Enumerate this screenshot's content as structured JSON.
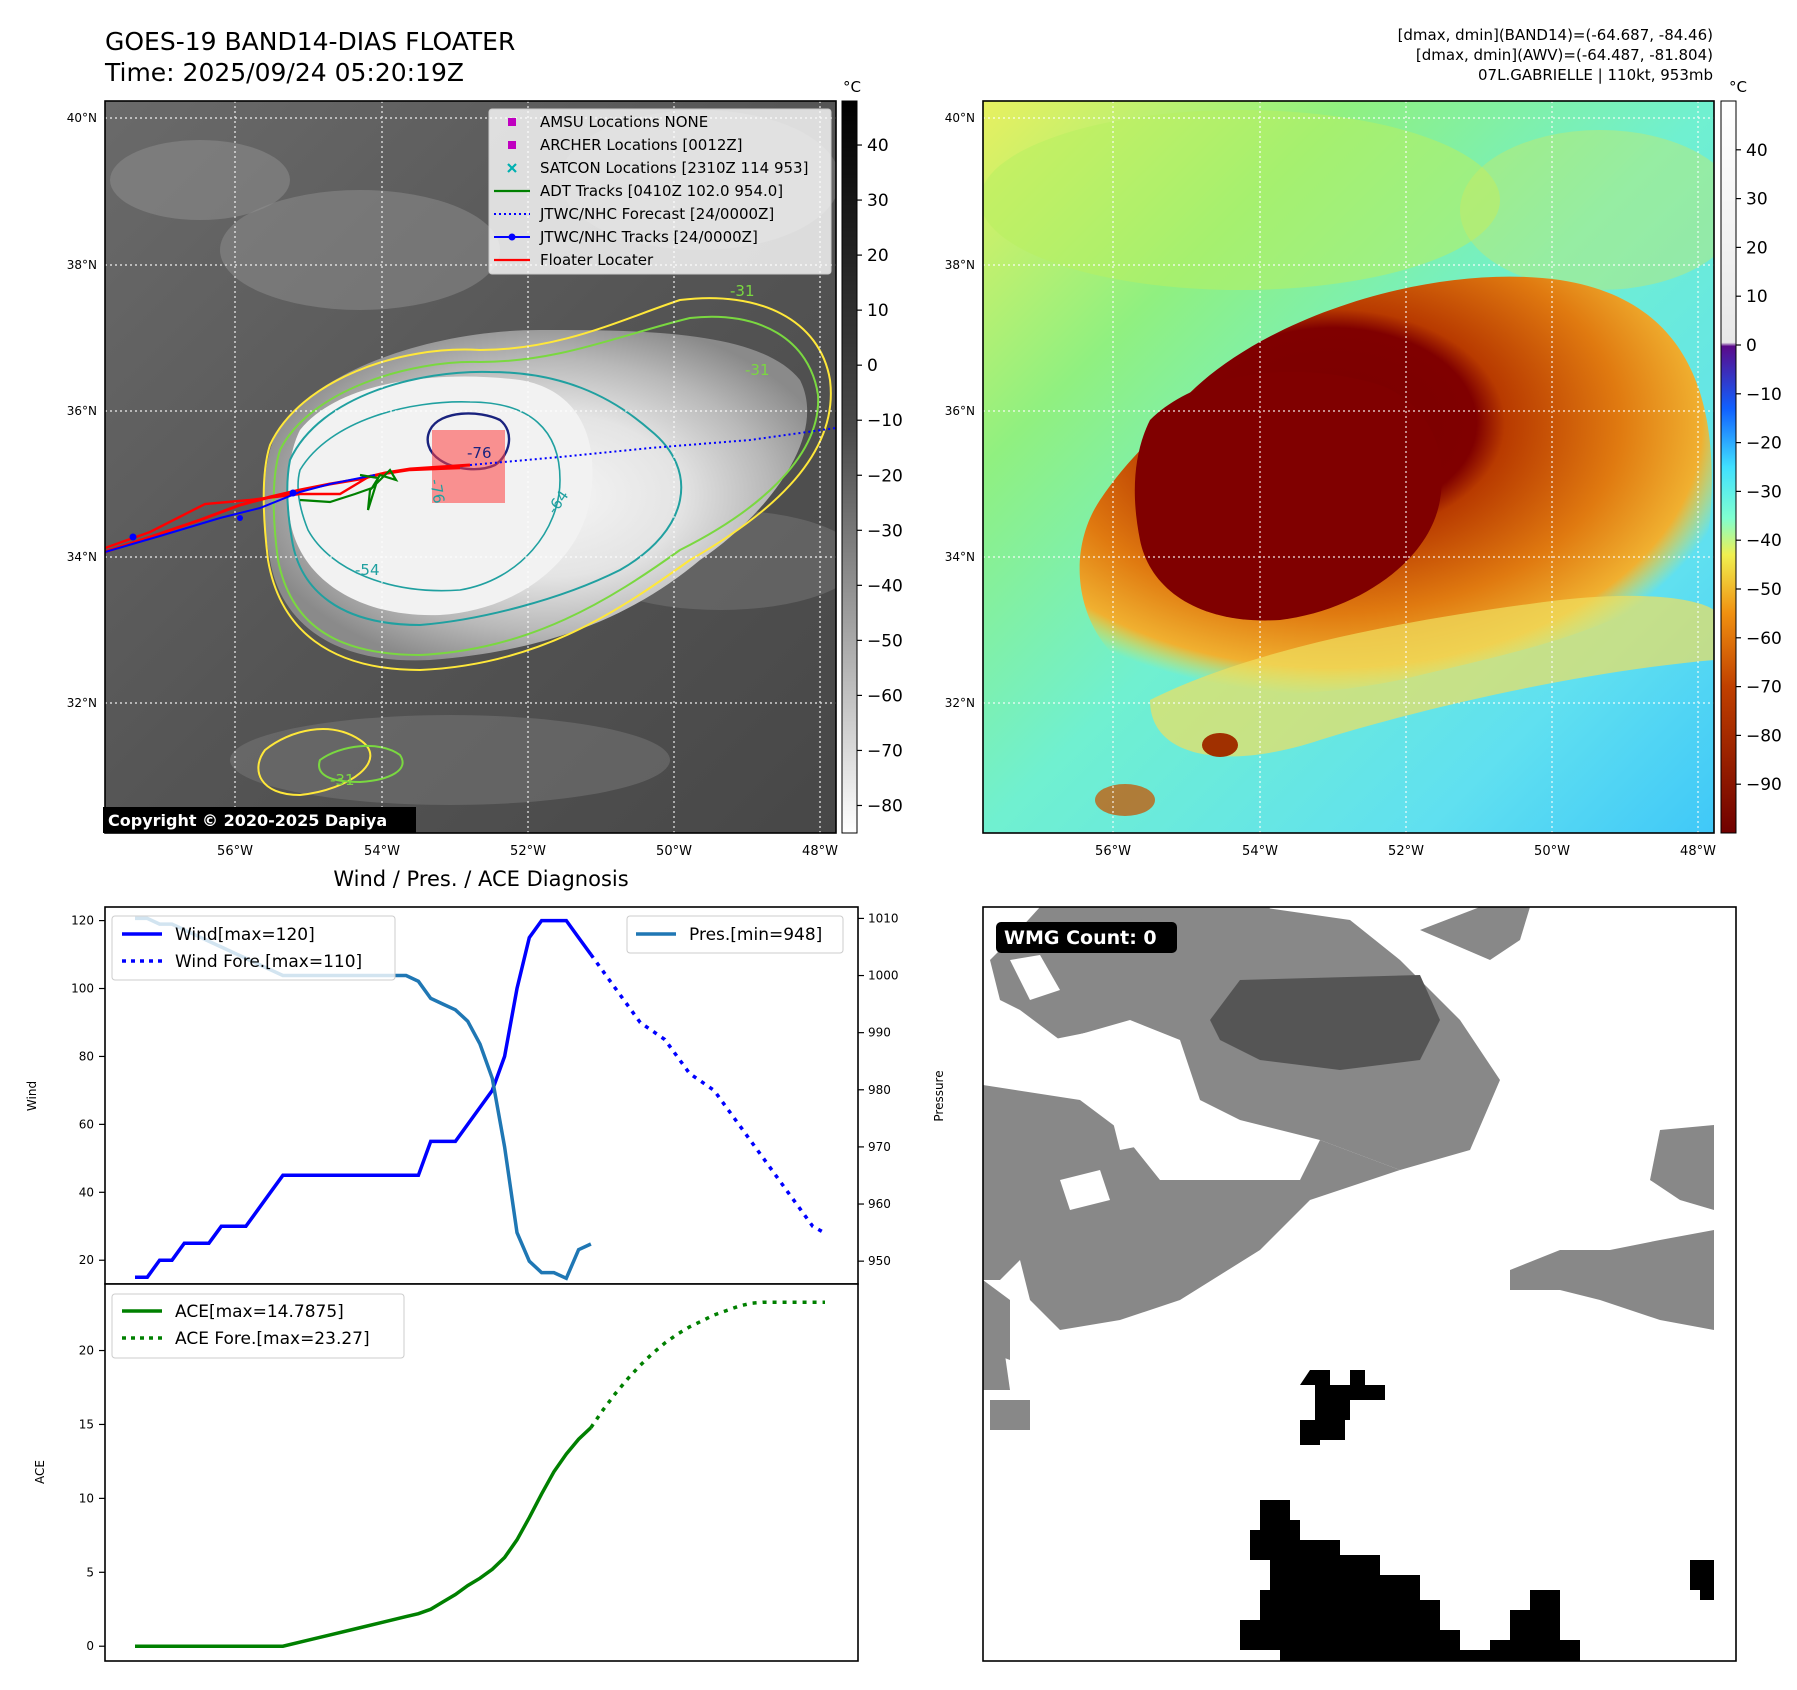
{
  "header": {
    "title": "GOES-19 BAND14-DIAS FLOATER",
    "time": "Time: 2025/09/24 05:20:19Z",
    "stats_band14": "[dmax, dmin](BAND14)=(-64.687, -84.46)",
    "stats_awv": "[dmax, dmin](AWV)=(-64.487, -81.804)",
    "storm": "07L.GABRIELLE | 110kt, 953mb"
  },
  "copyright": "Copyright © 2020-2025 Dapiya",
  "map_axes": {
    "lat_labels": [
      "40°N",
      "38°N",
      "36°N",
      "34°N",
      "32°N"
    ],
    "lon_labels": [
      "56°W",
      "54°W",
      "52°W",
      "50°W",
      "48°W"
    ]
  },
  "colorbar_ir": {
    "unit": "°C",
    "ticks": [
      "40",
      "30",
      "20",
      "10",
      "0",
      "−10",
      "−20",
      "−30",
      "−40",
      "−50",
      "−60",
      "−70",
      "−80"
    ],
    "range": [
      -85,
      48
    ]
  },
  "colorbar_awv": {
    "unit": "°C",
    "ticks": [
      "40",
      "30",
      "20",
      "10",
      "0",
      "−10",
      "−20",
      "−30",
      "−40",
      "−50",
      "−60",
      "−70",
      "−80",
      "−90"
    ],
    "range": [
      -100,
      50
    ]
  },
  "legend_ir": [
    {
      "label": "AMSU Locations NONE",
      "marker": "square",
      "color": "#c000c0"
    },
    {
      "label": "ARCHER Locations [0012Z]",
      "marker": "square",
      "color": "#c000c0"
    },
    {
      "label": "SATCON Locations [2310Z 114 953]",
      "marker": "x",
      "color": "#00b0b0"
    },
    {
      "label": "ADT Tracks [0410Z 102.0 954.0]",
      "marker": "line",
      "color": "#008000"
    },
    {
      "label": "JTWC/NHC Forecast [24/0000Z]",
      "marker": "dotted",
      "color": "#0000ff"
    },
    {
      "label": "JTWC/NHC Tracks [24/0000Z]",
      "marker": "line-dot",
      "color": "#0000ff"
    },
    {
      "label": "Floater Locater",
      "marker": "line",
      "color": "#ff0000"
    }
  ],
  "contour_labels": [
    "-31",
    "-31",
    "-54",
    "-64",
    "-76",
    "-76",
    "-31"
  ],
  "diagnosis": {
    "title": "Wind / Pres. / ACE Diagnosis",
    "wind_axis_label": "Wind",
    "pressure_axis_label": "Pressure",
    "ace_axis_label": "ACE",
    "legend_wind": "Wind[max=120]",
    "legend_wind_fore": "Wind Fore.[max=110]",
    "legend_pres": "Pres.[min=948]",
    "legend_ace": "ACE[max=14.7875]",
    "legend_ace_fore": "ACE Fore.[max=23.27]",
    "wind_ticks": [
      "120",
      "100",
      "80",
      "60",
      "40",
      "20"
    ],
    "pres_ticks": [
      "1010",
      "1000",
      "990",
      "980",
      "970",
      "960",
      "950"
    ],
    "ace_ticks": [
      "20",
      "15",
      "10",
      "5",
      "0"
    ]
  },
  "wmg": {
    "label": "WMG Count: 0"
  },
  "chart_data": [
    {
      "type": "line",
      "title": "Wind / Pres. / ACE Diagnosis",
      "ylabel": "Wind",
      "ylim": [
        13,
        124
      ],
      "series": [
        {
          "name": "Wind[max=120]",
          "color": "#0000ff",
          "style": "solid",
          "x": [
            0,
            1,
            2,
            3,
            4,
            5,
            6,
            7,
            8,
            9,
            10,
            11,
            12,
            13,
            14,
            15,
            16,
            17,
            18,
            19,
            20,
            21,
            22,
            23,
            24,
            25,
            26,
            27,
            28,
            29,
            30,
            31,
            32,
            33,
            34,
            35,
            36,
            37
          ],
          "y": [
            15,
            15,
            20,
            20,
            25,
            25,
            25,
            30,
            30,
            30,
            35,
            40,
            45,
            45,
            45,
            45,
            45,
            45,
            45,
            45,
            45,
            45,
            45,
            45,
            55,
            55,
            55,
            60,
            65,
            70,
            80,
            100,
            115,
            120,
            120,
            120,
            115,
            110
          ]
        },
        {
          "name": "Wind Fore.[max=110]",
          "color": "#0000ff",
          "style": "dotted",
          "x": [
            37,
            39,
            41,
            43,
            45,
            47,
            48,
            49,
            50,
            51,
            52,
            53,
            54,
            55,
            56
          ],
          "y": [
            110,
            100,
            90,
            85,
            75,
            70,
            65,
            60,
            55,
            50,
            45,
            40,
            35,
            30,
            28
          ]
        }
      ]
    },
    {
      "type": "line",
      "ylabel": "Pressure",
      "ylim": [
        946,
        1012
      ],
      "series": [
        {
          "name": "Pres.[min=948]",
          "color": "#1f77b4",
          "style": "solid",
          "x": [
            0,
            1,
            2,
            3,
            4,
            5,
            6,
            7,
            8,
            9,
            10,
            11,
            12,
            13,
            14,
            15,
            16,
            17,
            18,
            19,
            20,
            21,
            22,
            23,
            24,
            25,
            26,
            27,
            28,
            29,
            30,
            31,
            32,
            33,
            34,
            35,
            36,
            37
          ],
          "y": [
            1010,
            1010,
            1009,
            1009,
            1008,
            1007,
            1006,
            1005,
            1004,
            1003,
            1002,
            1001,
            1000,
            1000,
            1000,
            1000,
            1000,
            1000,
            1000,
            1000,
            1000,
            1000,
            1000,
            999,
            996,
            995,
            994,
            992,
            988,
            982,
            970,
            955,
            950,
            948,
            948,
            947,
            952,
            953
          ]
        }
      ]
    },
    {
      "type": "line",
      "ylabel": "ACE",
      "ylim": [
        -1,
        24.5
      ],
      "series": [
        {
          "name": "ACE[max=14.7875]",
          "color": "#008000",
          "style": "solid",
          "x": [
            0,
            2,
            4,
            6,
            8,
            10,
            12,
            14,
            16,
            18,
            20,
            22,
            23,
            24,
            25,
            26,
            27,
            28,
            29,
            30,
            31,
            32,
            33,
            34,
            35,
            36,
            37
          ],
          "y": [
            0,
            0,
            0,
            0,
            0,
            0,
            0,
            0.4,
            0.8,
            1.2,
            1.6,
            2.0,
            2.2,
            2.5,
            3.0,
            3.5,
            4.1,
            4.6,
            5.2,
            6.0,
            7.2,
            8.7,
            10.3,
            11.8,
            13.0,
            14.0,
            14.79
          ]
        },
        {
          "name": "ACE Fore.[max=23.27]",
          "color": "#008000",
          "style": "dotted",
          "x": [
            37,
            38,
            39,
            40,
            41,
            42,
            43,
            44,
            45,
            46,
            47,
            48,
            49,
            50,
            51,
            52,
            53,
            54,
            55,
            56
          ],
          "y": [
            14.79,
            16.0,
            17.1,
            18.1,
            19.0,
            19.8,
            20.5,
            21.1,
            21.6,
            22.0,
            22.4,
            22.7,
            23.0,
            23.2,
            23.27,
            23.27,
            23.27,
            23.27,
            23.27,
            23.27
          ]
        }
      ]
    }
  ]
}
